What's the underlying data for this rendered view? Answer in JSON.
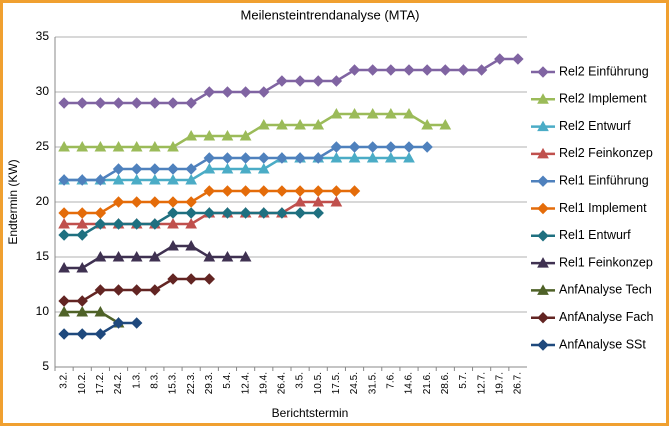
{
  "chart_data": {
    "type": "line",
    "title": "Meilensteintrendanalyse (MTA)",
    "x_label": "Berichtstermin",
    "y_label": "Endtermin (KW)",
    "categories": [
      "3.2.",
      "10.2.",
      "17.2.",
      "24.2.",
      "1.3.",
      "8.3.",
      "15.3.",
      "22.3.",
      "29.3.",
      "5.4.",
      "12.4.",
      "19.4.",
      "26.4.",
      "3.5.",
      "10.5.",
      "17.5.",
      "24.5.",
      "31.5.",
      "7.6.",
      "14.6.",
      "21.6.",
      "28.6.",
      "5.7.",
      "12.7.",
      "19.7.",
      "26.7."
    ],
    "ylim": [
      5,
      35
    ],
    "yticks": [
      5,
      10,
      15,
      20,
      25,
      30,
      35
    ],
    "grid": true,
    "legend": "right",
    "series": [
      {
        "name": "Rel2 Einführung",
        "color": "#8064a2",
        "marker": "diamond",
        "values": [
          29,
          29,
          29,
          29,
          29,
          29,
          29,
          29,
          30,
          30,
          30,
          30,
          31,
          31,
          31,
          31,
          32,
          32,
          32,
          32,
          32,
          32,
          32,
          32,
          33,
          33
        ]
      },
      {
        "name": "Rel2 Implement",
        "color": "#9bbb59",
        "marker": "triangle",
        "values": [
          25,
          25,
          25,
          25,
          25,
          25,
          25,
          26,
          26,
          26,
          26,
          27,
          27,
          27,
          27,
          28,
          28,
          28,
          28,
          28,
          27,
          27,
          null,
          null,
          null,
          null
        ]
      },
      {
        "name": "Rel2 Entwurf",
        "color": "#4bacc6",
        "marker": "triangle",
        "values": [
          22,
          22,
          22,
          22,
          22,
          22,
          22,
          22,
          23,
          23,
          23,
          23,
          24,
          24,
          24,
          24,
          24,
          24,
          24,
          24,
          null,
          null,
          null,
          null,
          null,
          null
        ]
      },
      {
        "name": "Rel2 Feinkonzep",
        "color": "#c0504d",
        "marker": "triangle",
        "values": [
          18,
          18,
          18,
          18,
          18,
          18,
          18,
          18,
          19,
          19,
          19,
          19,
          19,
          20,
          20,
          20,
          null,
          null,
          null,
          null,
          null,
          null,
          null,
          null,
          null,
          null
        ]
      },
      {
        "name": "Rel1 Einführung",
        "color": "#4f81bd",
        "marker": "diamond",
        "values": [
          22,
          22,
          22,
          23,
          23,
          23,
          23,
          23,
          24,
          24,
          24,
          24,
          24,
          24,
          24,
          25,
          25,
          25,
          25,
          25,
          25,
          null,
          null,
          null,
          null,
          null
        ]
      },
      {
        "name": "Rel1 Implement",
        "color": "#e46c0a",
        "marker": "diamond",
        "values": [
          19,
          19,
          19,
          20,
          20,
          20,
          20,
          20,
          21,
          21,
          21,
          21,
          21,
          21,
          21,
          21,
          21,
          null,
          null,
          null,
          null,
          null,
          null,
          null,
          null,
          null
        ]
      },
      {
        "name": "Rel1 Entwurf",
        "color": "#1f7080",
        "marker": "diamond",
        "values": [
          17,
          17,
          18,
          18,
          18,
          18,
          19,
          19,
          19,
          19,
          19,
          19,
          19,
          19,
          19,
          null,
          null,
          null,
          null,
          null,
          null,
          null,
          null,
          null,
          null,
          null
        ]
      },
      {
        "name": "Rel1 Feinkonzep",
        "color": "#3f3151",
        "marker": "triangle",
        "values": [
          14,
          14,
          15,
          15,
          15,
          15,
          16,
          16,
          15,
          15,
          15,
          null,
          null,
          null,
          null,
          null,
          null,
          null,
          null,
          null,
          null,
          null,
          null,
          null,
          null,
          null
        ]
      },
      {
        "name": "AnfAnalyse Tech",
        "color": "#4f6228",
        "marker": "triangle",
        "values": [
          10,
          10,
          10,
          9,
          null,
          null,
          null,
          null,
          null,
          null,
          null,
          null,
          null,
          null,
          null,
          null,
          null,
          null,
          null,
          null,
          null,
          null,
          null,
          null,
          null,
          null
        ]
      },
      {
        "name": "AnfAnalyse Fach",
        "color": "#632523",
        "marker": "diamond",
        "values": [
          11,
          11,
          12,
          12,
          12,
          12,
          13,
          13,
          13,
          null,
          null,
          null,
          null,
          null,
          null,
          null,
          null,
          null,
          null,
          null,
          null,
          null,
          null,
          null,
          null,
          null
        ]
      },
      {
        "name": "AnfAnalyse SSt",
        "color": "#1f497d",
        "marker": "diamond",
        "values": [
          8,
          8,
          8,
          9,
          9,
          null,
          null,
          null,
          null,
          null,
          null,
          null,
          null,
          null,
          null,
          null,
          null,
          null,
          null,
          null,
          null,
          null,
          null,
          null,
          null,
          null
        ]
      }
    ]
  }
}
